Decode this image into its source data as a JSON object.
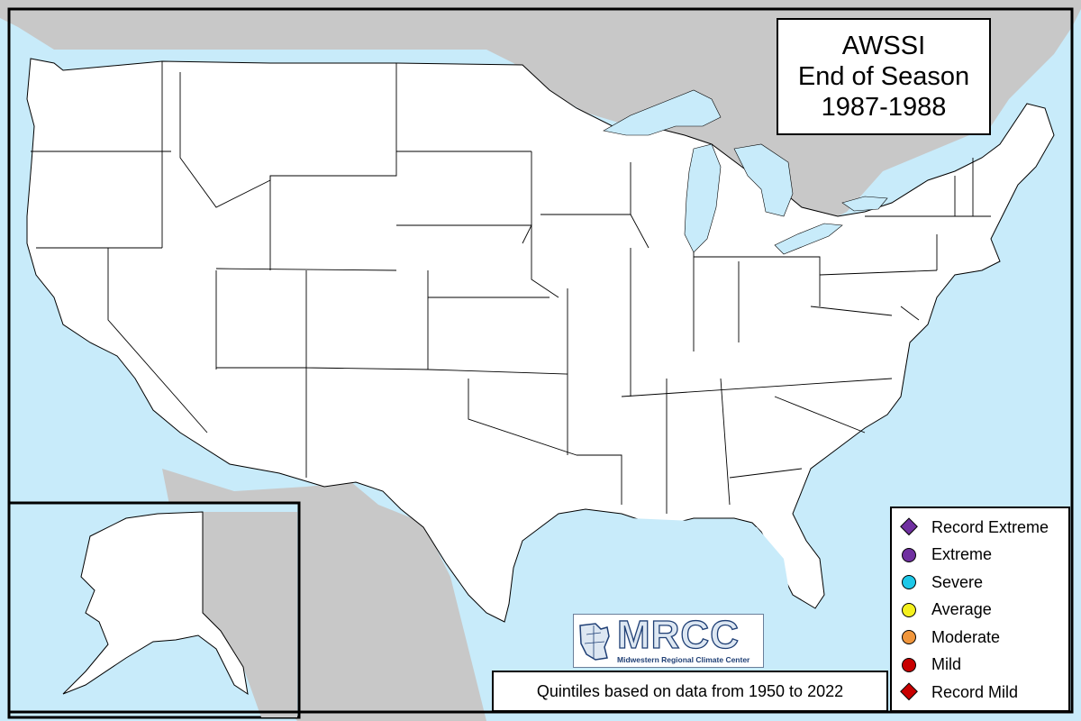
{
  "title": {
    "line1": "AWSSI",
    "line2": "End of Season",
    "line3": "1987-1988"
  },
  "note": "Quintiles based on data from 1950 to 2022",
  "logo": {
    "text": "MRCC",
    "subtitle": "Midwestern Regional Climate Center"
  },
  "colors": {
    "record_extreme": "#7030A0",
    "extreme": "#7030A0",
    "severe": "#1EC8E8",
    "average": "#F4F01E",
    "moderate": "#F0963C",
    "mild": "#C80000",
    "record_mild": "#C80000",
    "land": "#FFFFFF",
    "water": "#C8EBFA",
    "foreign_land": "#C8C8C8"
  },
  "legend": [
    {
      "key": "record_extreme",
      "label": "Record Extreme",
      "shape": "diamond"
    },
    {
      "key": "extreme",
      "label": "Extreme",
      "shape": "circle"
    },
    {
      "key": "severe",
      "label": "Severe",
      "shape": "circle"
    },
    {
      "key": "average",
      "label": "Average",
      "shape": "circle"
    },
    {
      "key": "moderate",
      "label": "Moderate",
      "shape": "circle"
    },
    {
      "key": "mild",
      "label": "Mild",
      "shape": "circle"
    },
    {
      "key": "record_mild",
      "label": "Record Mild",
      "shape": "diamond"
    }
  ]
}
